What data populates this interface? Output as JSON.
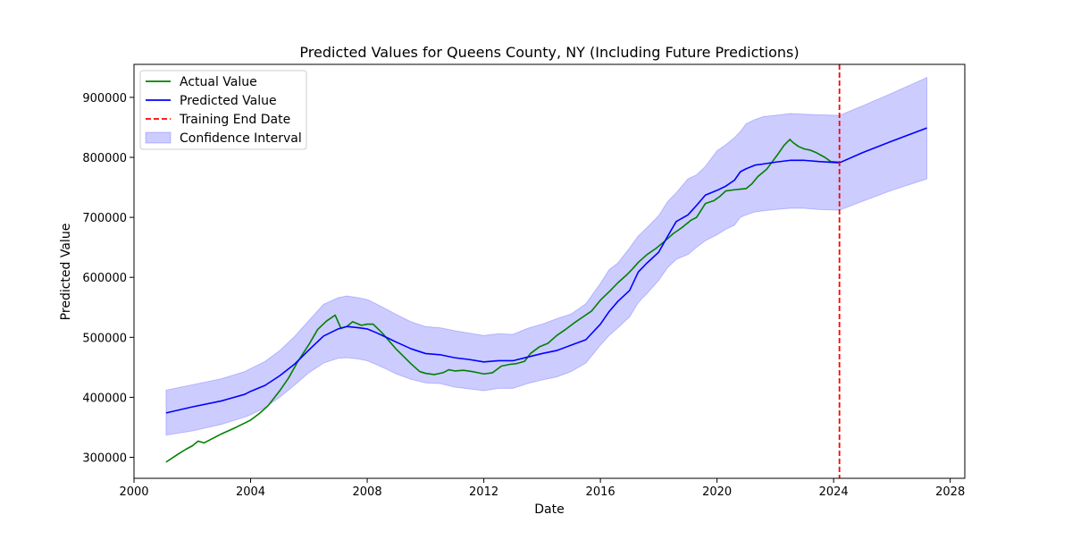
{
  "chart_data": {
    "type": "line",
    "title": "Predicted Values for Queens County, NY (Including Future Predictions)",
    "xlabel": "Date",
    "ylabel": "Predicted Value",
    "xlim": [
      2000.0,
      2028.5
    ],
    "ylim": [
      265000,
      955000
    ],
    "x_ticks": [
      2000,
      2004,
      2008,
      2012,
      2016,
      2020,
      2024,
      2028
    ],
    "x_tick_labels": [
      "2000",
      "2004",
      "2008",
      "2012",
      "2016",
      "2020",
      "2024",
      "2028"
    ],
    "y_ticks": [
      300000,
      400000,
      500000,
      600000,
      700000,
      800000,
      900000
    ],
    "y_tick_labels": [
      "300000",
      "400000",
      "500000",
      "600000",
      "700000",
      "800000",
      "900000"
    ],
    "grid": false,
    "legend_position": "upper left",
    "legend": [
      {
        "label": "Actual Value",
        "style": "line",
        "color": "#008000"
      },
      {
        "label": "Predicted Value",
        "style": "line",
        "color": "#0000ff"
      },
      {
        "label": "Training End Date",
        "style": "dashed",
        "color": "#ff0000"
      },
      {
        "label": "Confidence Interval",
        "style": "band",
        "color": "#0000ff"
      }
    ],
    "training_end_date": 2024.2,
    "series": [
      {
        "name": "Actual Value",
        "color": "#008000",
        "x": [
          2001.1,
          2001.5,
          2001.8,
          2002.0,
          2002.2,
          2002.4,
          2002.6,
          2003.0,
          2003.5,
          2004.0,
          2004.3,
          2004.6,
          2005.0,
          2005.3,
          2005.6,
          2006.0,
          2006.3,
          2006.6,
          2006.9,
          2007.1,
          2007.3,
          2007.5,
          2007.8,
          2008.0,
          2008.2,
          2008.5,
          2009.0,
          2009.5,
          2009.8,
          2010.0,
          2010.3,
          2010.6,
          2010.8,
          2011.0,
          2011.3,
          2011.6,
          2011.8,
          2012.0,
          2012.3,
          2012.6,
          2012.9,
          2013.1,
          2013.4,
          2013.6,
          2013.9,
          2014.2,
          2014.5,
          2014.8,
          2015.1,
          2015.4,
          2015.7,
          2016.0,
          2016.3,
          2016.6,
          2016.9,
          2017.1,
          2017.3,
          2017.6,
          2017.9,
          2018.2,
          2018.5,
          2018.8,
          2019.1,
          2019.3,
          2019.6,
          2019.9,
          2020.1,
          2020.3,
          2020.6,
          2020.8,
          2021.0,
          2021.2,
          2021.4,
          2021.7,
          2021.9,
          2022.1,
          2022.3,
          2022.5,
          2022.6,
          2022.8,
          2023.0,
          2023.2,
          2023.4,
          2023.7,
          2023.9,
          2024.2
        ],
        "values": [
          292000,
          305000,
          314000,
          319000,
          327000,
          324000,
          329000,
          339000,
          350000,
          362000,
          373000,
          386000,
          411000,
          432000,
          458000,
          488000,
          513000,
          527000,
          537000,
          515000,
          518000,
          526000,
          520000,
          522000,
          522000,
          508000,
          480000,
          456000,
          443000,
          440000,
          438000,
          441000,
          446000,
          444000,
          445000,
          443000,
          441000,
          439000,
          441000,
          452000,
          455000,
          456000,
          460000,
          473000,
          484000,
          490000,
          503000,
          513000,
          524000,
          534000,
          544000,
          562000,
          576000,
          591000,
          604000,
          614000,
          625000,
          638000,
          648000,
          660000,
          673000,
          683000,
          695000,
          700000,
          723000,
          728000,
          735000,
          744000,
          746000,
          747000,
          748000,
          756000,
          768000,
          780000,
          793000,
          806000,
          820000,
          830000,
          825000,
          818000,
          814000,
          812000,
          808000,
          800000,
          793000,
          792000
        ]
      },
      {
        "name": "Predicted Value",
        "color": "#0000ff",
        "x": [
          2001.1,
          2002.0,
          2003.0,
          2003.8,
          2004.0,
          2004.5,
          2005.0,
          2005.5,
          2006.0,
          2006.5,
          2007.0,
          2007.3,
          2007.7,
          2008.0,
          2008.3,
          2008.7,
          2009.0,
          2009.5,
          2010.0,
          2010.5,
          2011.0,
          2011.5,
          2012.0,
          2012.5,
          2013.0,
          2013.5,
          2014.0,
          2014.5,
          2015.0,
          2015.5,
          2016.0,
          2016.3,
          2016.6,
          2017.0,
          2017.3,
          2017.6,
          2018.0,
          2018.3,
          2018.6,
          2019.0,
          2019.3,
          2019.6,
          2020.0,
          2020.3,
          2020.6,
          2020.8,
          2021.0,
          2021.3,
          2021.6,
          2022.0,
          2022.5,
          2023.0,
          2023.5,
          2024.2,
          2025.0,
          2026.0,
          2027.2
        ],
        "values": [
          374000,
          384000,
          394000,
          405000,
          410000,
          420000,
          436000,
          455000,
          479000,
          502000,
          514000,
          518000,
          516000,
          514000,
          508000,
          499000,
          492000,
          481000,
          473000,
          471000,
          466000,
          463000,
          459000,
          461000,
          461000,
          467000,
          473000,
          478000,
          487000,
          496000,
          522000,
          543000,
          560000,
          578000,
          609000,
          624000,
          642000,
          668000,
          693000,
          704000,
          720000,
          737000,
          745000,
          752000,
          762000,
          776000,
          781000,
          787000,
          789000,
          792000,
          795000,
          795000,
          793000,
          791000,
          808000,
          827000,
          849000
        ]
      }
    ],
    "confidence_interval": {
      "name": "Confidence Interval",
      "color": "#0000ff",
      "x": [
        2001.1,
        2002.0,
        2003.0,
        2003.8,
        2004.0,
        2004.5,
        2005.0,
        2005.5,
        2006.0,
        2006.5,
        2007.0,
        2007.3,
        2007.7,
        2008.0,
        2008.3,
        2008.7,
        2009.0,
        2009.5,
        2010.0,
        2010.5,
        2011.0,
        2011.5,
        2012.0,
        2012.5,
        2013.0,
        2013.5,
        2014.0,
        2014.5,
        2015.0,
        2015.5,
        2016.0,
        2016.3,
        2016.6,
        2017.0,
        2017.3,
        2017.6,
        2018.0,
        2018.3,
        2018.6,
        2019.0,
        2019.3,
        2019.6,
        2020.0,
        2020.3,
        2020.6,
        2020.8,
        2021.0,
        2021.3,
        2021.6,
        2022.0,
        2022.5,
        2023.0,
        2023.5,
        2024.2,
        2025.0,
        2026.0,
        2027.2
      ],
      "lower": [
        337000,
        344000,
        355000,
        367000,
        371000,
        383000,
        400000,
        420000,
        441000,
        457000,
        465000,
        466000,
        464000,
        461000,
        455000,
        446000,
        439000,
        430000,
        424000,
        423000,
        417000,
        414000,
        411000,
        415000,
        415000,
        423000,
        429000,
        434000,
        443000,
        457000,
        487000,
        503000,
        516000,
        534000,
        558000,
        573000,
        595000,
        616000,
        630000,
        638000,
        650000,
        661000,
        671000,
        680000,
        687000,
        700000,
        704000,
        709000,
        711000,
        713000,
        715000,
        715000,
        713000,
        712000,
        727000,
        745000,
        764000
      ],
      "upper": [
        412000,
        421000,
        431000,
        443000,
        448000,
        460000,
        478000,
        501000,
        528000,
        555000,
        566000,
        569000,
        566000,
        563000,
        556000,
        546000,
        538000,
        526000,
        518000,
        516000,
        511000,
        507000,
        503000,
        506000,
        505000,
        515000,
        522000,
        531000,
        539000,
        556000,
        590000,
        613000,
        624000,
        649000,
        669000,
        683000,
        703000,
        726000,
        741000,
        764000,
        771000,
        785000,
        811000,
        821000,
        833000,
        843000,
        856000,
        863000,
        868000,
        870000,
        873000,
        872000,
        871000,
        870000,
        886000,
        907000,
        933000
      ]
    }
  }
}
